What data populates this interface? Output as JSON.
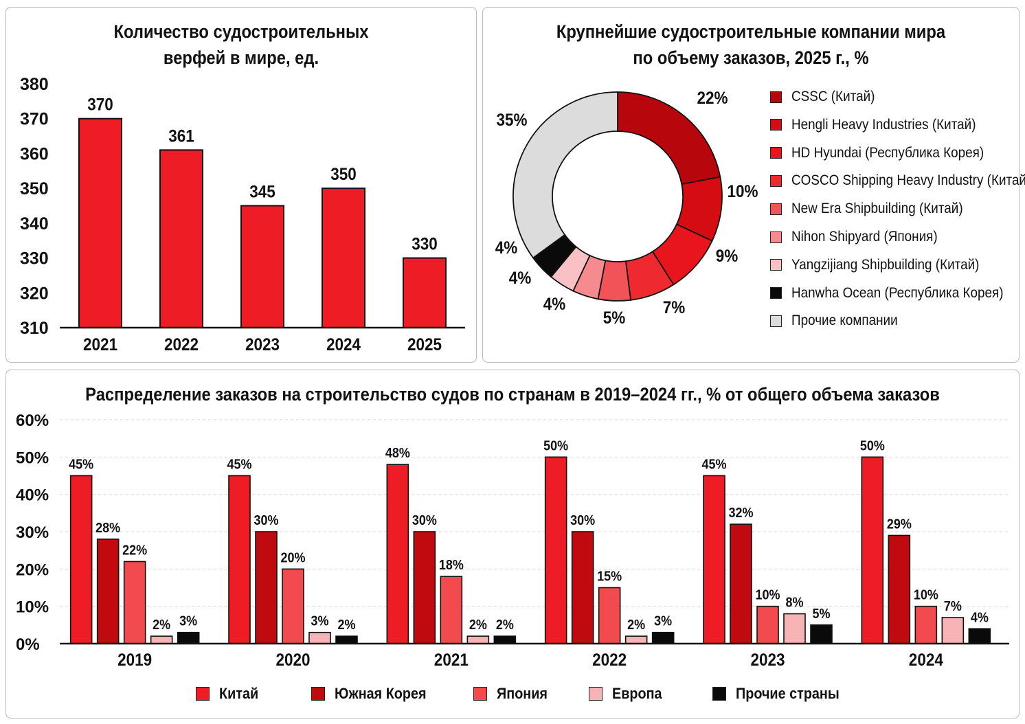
{
  "colors": {
    "red": "#ee1c25",
    "dark_red": "#c00a0f",
    "mid_red": "#e0171d",
    "light_red": "#f24a4f",
    "pink": "#f48e91",
    "pale_pink": "#f9c3c5",
    "black": "#0a0a0a",
    "gray": "#dcdcdc"
  },
  "chart_data": [
    {
      "type": "bar",
      "title_line1": "Количество судостроительных",
      "title_line2": "верфей в мире, ед.",
      "categories": [
        "2021",
        "2022",
        "2023",
        "2024",
        "2025"
      ],
      "values": [
        370,
        361,
        345,
        350,
        330
      ],
      "data_labels": [
        "370",
        "361",
        "345",
        "350",
        "330"
      ],
      "yticks": [
        "310",
        "320",
        "330",
        "340",
        "350",
        "360",
        "370",
        "380"
      ],
      "ylim": [
        310,
        380
      ],
      "grid": false
    },
    {
      "type": "pie",
      "donut": true,
      "title_line1": "Крупнейшие судостроительные компании мира",
      "title_line2": "по объему заказов, 2025 г., %",
      "slices": [
        {
          "name": "CSSC (Китай)",
          "value": 22,
          "label": "22%",
          "color": "#b8070c"
        },
        {
          "name": "Hengli Heavy Industries (Китай)",
          "value": 10,
          "label": "10%",
          "color": "#d50d13"
        },
        {
          "name": "HD Hyundai (Республика Корея)",
          "value": 9,
          "label": "9%",
          "color": "#e8161c"
        },
        {
          "name": "COSCO Shipping Heavy Industry (Китай)",
          "value": 7,
          "label": "7%",
          "color": "#ee2a30"
        },
        {
          "name": "New Era Shipbuilding (Китай)",
          "value": 5,
          "label": "5%",
          "color": "#f25358"
        },
        {
          "name": "Nihon Shipyard (Япония)",
          "value": 4,
          "label": "4%",
          "color": "#f58b8e"
        },
        {
          "name": "Yangzijiang Shipbuilding (Китай)",
          "value": 4,
          "label": "4%",
          "color": "#f9c1c3"
        },
        {
          "name": "Hanwha Ocean (Республика Корея)",
          "value": 4,
          "label": "4%",
          "color": "#0a0a0a"
        },
        {
          "name": "Прочие компании",
          "value": 35,
          "label": "35%",
          "color": "#dcdcdc"
        }
      ],
      "legend": "right"
    },
    {
      "type": "bar",
      "title": "Распределение заказов на строительство судов по странам в 2019–2024 гг., % от общего объема заказов",
      "categories": [
        "2019",
        "2020",
        "2021",
        "2022",
        "2023",
        "2024"
      ],
      "yticks": [
        "0%",
        "10%",
        "20%",
        "30%",
        "40%",
        "50%",
        "60%"
      ],
      "ylim": [
        0,
        60
      ],
      "grid": true,
      "legend": "bottom",
      "series": [
        {
          "name": "Китай",
          "values": [
            45,
            45,
            48,
            50,
            45,
            50
          ],
          "labels": [
            "45%",
            "45%",
            "48%",
            "50%",
            "45%",
            "50%"
          ],
          "color": "#ee1c25"
        },
        {
          "name": "Южная Корея",
          "values": [
            28,
            30,
            30,
            30,
            32,
            29
          ],
          "labels": [
            "28%",
            "30%",
            "30%",
            "30%",
            "32%",
            "29%"
          ],
          "color": "#c00a0f"
        },
        {
          "name": "Япония",
          "values": [
            22,
            20,
            18,
            15,
            10,
            10
          ],
          "labels": [
            "22%",
            "20%",
            "18%",
            "15%",
            "10%",
            "10%"
          ],
          "color": "#f24a4f"
        },
        {
          "name": "Европа",
          "values": [
            2,
            3,
            2,
            2,
            8,
            7
          ],
          "labels": [
            "2%",
            "3%",
            "2%",
            "2%",
            "8%",
            "7%"
          ],
          "color": "#f7b3b5"
        },
        {
          "name": "Прочие страны",
          "values": [
            3,
            2,
            2,
            3,
            5,
            4
          ],
          "labels": [
            "3%",
            "2%",
            "2%",
            "3%",
            "5%",
            "4%"
          ],
          "color": "#0a0a0a"
        }
      ]
    }
  ]
}
